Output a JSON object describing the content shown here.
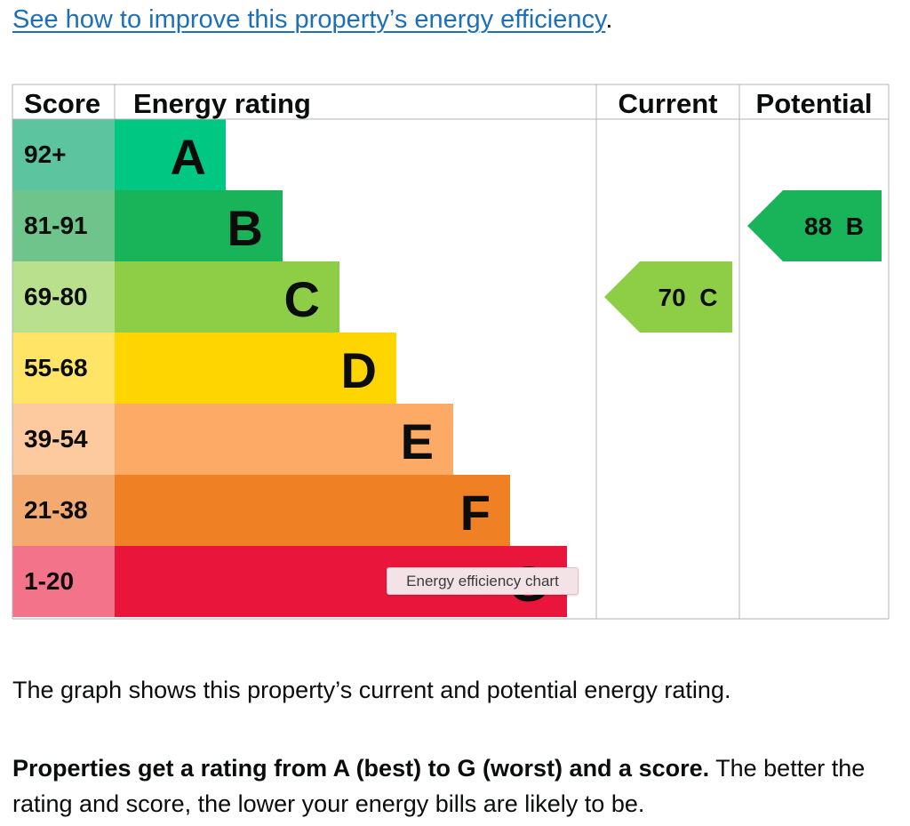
{
  "link": {
    "text": "See how to improve this property’s energy efficiency",
    "suffix": "."
  },
  "tooltip": "Energy efficiency chart",
  "chart_data": {
    "type": "table",
    "headers": {
      "score": "Score",
      "rating": "Energy rating",
      "current": "Current",
      "potential": "Potential"
    },
    "bands": [
      {
        "score": "92+",
        "letter": "A",
        "band_color": "#00c781",
        "score_color": "#5dc4a0"
      },
      {
        "score": "81-91",
        "letter": "B",
        "band_color": "#19b459",
        "score_color": "#6fc48c"
      },
      {
        "score": "69-80",
        "letter": "C",
        "band_color": "#8dce46",
        "score_color": "#b9e08d"
      },
      {
        "score": "55-68",
        "letter": "D",
        "band_color": "#ffd500",
        "score_color": "#ffe466"
      },
      {
        "score": "39-54",
        "letter": "E",
        "band_color": "#fcaa65",
        "score_color": "#fdc99f"
      },
      {
        "score": "21-38",
        "letter": "F",
        "band_color": "#ef8023",
        "score_color": "#f4aa6f"
      },
      {
        "score": "1-20",
        "letter": "G",
        "band_color": "#e9153b",
        "score_color": "#f2738a"
      }
    ],
    "current": {
      "score": 70,
      "letter": "C",
      "label": "70  C",
      "color": "#8dce46"
    },
    "potential": {
      "score": 88,
      "letter": "B",
      "label": "88  B",
      "color": "#19b459"
    }
  },
  "paragraph1": "The graph shows this property’s current and potential energy rating.",
  "paragraph2_bold": "Properties get a rating from A (best) to G (worst) and a score.",
  "paragraph2_rest": " The better the rating and score, the lower your energy bills are likely to be."
}
